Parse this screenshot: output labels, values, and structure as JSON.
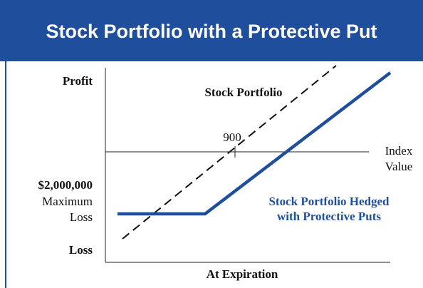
{
  "header": {
    "title": "Stock Portfolio with a Protective Put"
  },
  "diagram": {
    "y_axis_top": "Profit",
    "y_axis_bottom": "Loss",
    "x_axis": "At Expiration",
    "index_label": [
      "Index",
      "Value"
    ],
    "strike_label": "900",
    "max_loss": [
      "$2,000,000",
      "Maximum",
      "Loss"
    ],
    "stock_line_label": "Stock Portfolio",
    "hedged_line_label": [
      "Stock Portfolio Hedged",
      "with Protective Puts"
    ]
  }
}
